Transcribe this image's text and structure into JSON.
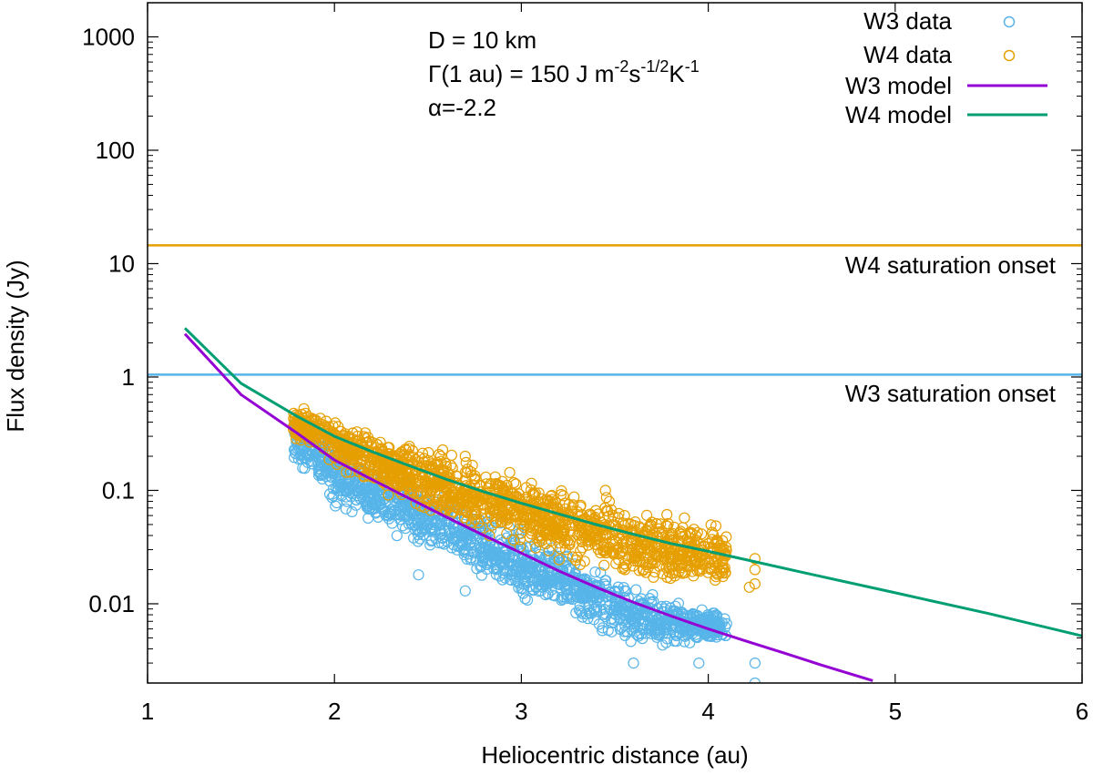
{
  "chart_data": {
    "type": "scatter",
    "xlabel": "Heliocentric distance (au)",
    "ylabel": "Flux density (Jy)",
    "xlim": [
      1,
      6
    ],
    "ylim": [
      0.002,
      2000
    ],
    "yscale": "log",
    "x_ticks": [
      1,
      2,
      3,
      4,
      5,
      6
    ],
    "x_tick_labels": [
      "1",
      "2",
      "3",
      "4",
      "5",
      "6"
    ],
    "y_ticks": [
      0.01,
      0.1,
      1,
      10,
      100,
      1000
    ],
    "y_tick_labels": [
      "0.01",
      "0.1",
      "1",
      "10",
      "100",
      "1000"
    ],
    "grid": false,
    "legend_position": "top-right",
    "annotations": {
      "line1_text": "D = 10 km",
      "line2_prefix": "Γ(1 au) = 150 J m",
      "line2_sup1": "-2",
      "line2_mid1": "s",
      "line2_sup2": "-1/2",
      "line2_mid2": "K",
      "line2_sup3": "-1",
      "line3_text": "α=-2.2"
    },
    "hlines": [
      {
        "name": "W4 saturation onset",
        "y": 14.5,
        "color": "#E69F00"
      },
      {
        "name": "W3 saturation onset",
        "y": 1.05,
        "color": "#56B4E9"
      }
    ],
    "series": [
      {
        "name": "W3 data",
        "kind": "scatter",
        "color": "#56B4E9",
        "envelope": {
          "x": [
            1.78,
            1.9,
            2.0,
            2.2,
            2.4,
            2.6,
            2.8,
            3.0,
            3.2,
            3.4,
            3.6,
            3.8,
            4.0,
            4.1
          ],
          "ymin": [
            0.15,
            0.1,
            0.06,
            0.045,
            0.03,
            0.022,
            0.014,
            0.01,
            0.008,
            0.005,
            0.004,
            0.004,
            0.004,
            0.004
          ],
          "ymax": [
            0.55,
            0.45,
            0.3,
            0.2,
            0.14,
            0.1,
            0.07,
            0.05,
            0.035,
            0.024,
            0.016,
            0.012,
            0.01,
            0.009
          ]
        },
        "extra_points": [
          [
            4.25,
            0.003
          ],
          [
            4.25,
            0.002
          ],
          [
            3.6,
            0.003
          ],
          [
            3.95,
            0.003
          ],
          [
            2.45,
            0.018
          ],
          [
            2.7,
            0.013
          ]
        ]
      },
      {
        "name": "W4 data",
        "kind": "scatter",
        "color": "#E69F00",
        "envelope": {
          "x": [
            1.78,
            1.9,
            2.0,
            2.2,
            2.4,
            2.6,
            2.8,
            3.0,
            3.2,
            3.4,
            3.6,
            3.8,
            4.0,
            4.1
          ],
          "ymin": [
            0.25,
            0.2,
            0.15,
            0.09,
            0.065,
            0.045,
            0.035,
            0.028,
            0.022,
            0.018,
            0.014,
            0.013,
            0.013,
            0.013
          ],
          "ymax": [
            0.6,
            0.55,
            0.45,
            0.37,
            0.3,
            0.25,
            0.2,
            0.15,
            0.12,
            0.1,
            0.09,
            0.07,
            0.06,
            0.05
          ]
        },
        "extra_points": [
          [
            4.25,
            0.025
          ],
          [
            4.25,
            0.015
          ],
          [
            4.25,
            0.02
          ],
          [
            4.22,
            0.014
          ],
          [
            2.7,
            0.2
          ],
          [
            3.45,
            0.1
          ]
        ]
      },
      {
        "name": "W3 model",
        "kind": "line",
        "color": "#9400D3",
        "x": [
          1.2,
          1.5,
          1.8,
          2.0,
          2.2,
          2.4,
          2.6,
          2.8,
          3.0,
          3.2,
          3.4,
          3.6,
          3.8,
          4.0,
          4.2,
          4.4,
          4.6,
          4.8,
          4.88
        ],
        "y": [
          2.4,
          0.7,
          0.32,
          0.185,
          0.125,
          0.085,
          0.058,
          0.04,
          0.028,
          0.0195,
          0.014,
          0.0103,
          0.0078,
          0.006,
          0.0047,
          0.0037,
          0.0029,
          0.0023,
          0.0021
        ]
      },
      {
        "name": "W4 model",
        "kind": "line",
        "color": "#009E73",
        "x": [
          1.2,
          1.5,
          1.8,
          2.0,
          2.2,
          2.4,
          2.6,
          2.8,
          3.0,
          3.2,
          3.4,
          3.6,
          3.8,
          4.0,
          4.2,
          4.5,
          5.0,
          5.5,
          6.0
        ],
        "y": [
          2.7,
          0.88,
          0.45,
          0.3,
          0.22,
          0.165,
          0.125,
          0.097,
          0.077,
          0.062,
          0.05,
          0.041,
          0.034,
          0.029,
          0.0245,
          0.019,
          0.0125,
          0.0082,
          0.0052
        ]
      }
    ]
  }
}
